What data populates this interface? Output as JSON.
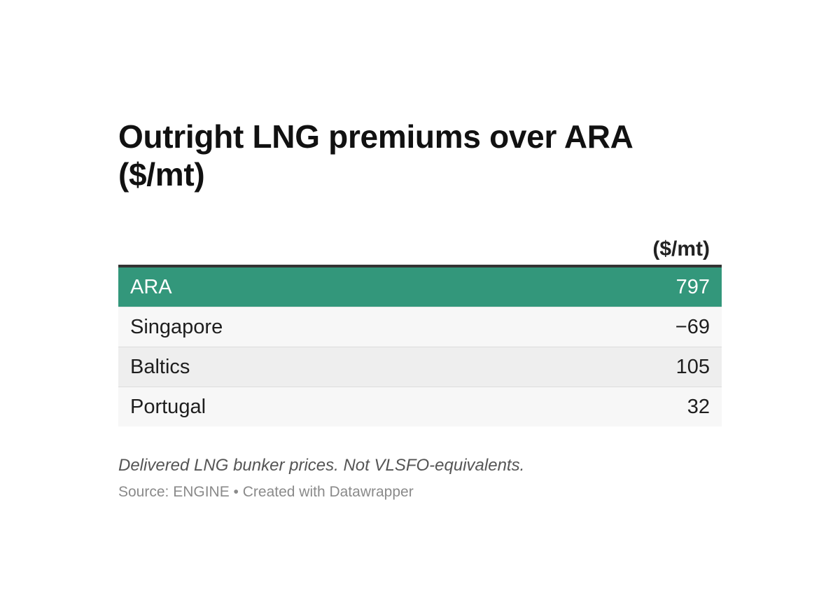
{
  "chart_data": {
    "type": "table",
    "title": "Outright LNG premiums over ARA ($/mt)",
    "columns": [
      "",
      "($/mt)"
    ],
    "rows": [
      {
        "label": "ARA",
        "value": 797,
        "display": "797",
        "highlight": true
      },
      {
        "label": "Singapore",
        "value": -69,
        "display": "−69",
        "highlight": false
      },
      {
        "label": "Baltics",
        "value": 105,
        "display": "105",
        "highlight": false
      },
      {
        "label": "Portugal",
        "value": 32,
        "display": "32",
        "highlight": false
      }
    ],
    "notes": "Delivered LNG bunker prices. Not VLSFO-equivalents.",
    "source": "Source: ENGINE • Created with Datawrapper"
  },
  "colors": {
    "highlight_row": "#33977b",
    "header_rule": "#333333"
  }
}
